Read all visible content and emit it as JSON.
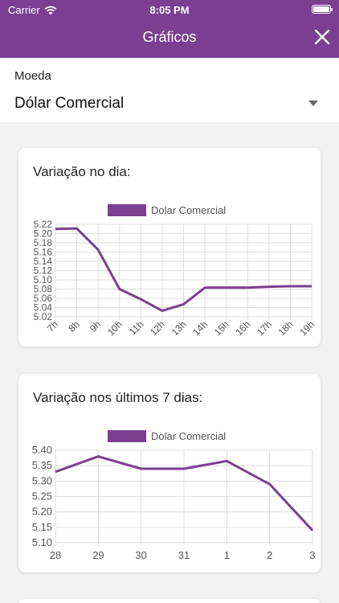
{
  "status_bar": {
    "carrier": "Carrier",
    "time": "8:05 PM"
  },
  "header": {
    "title": "Gráficos",
    "close_icon": "close-icon"
  },
  "currency_selector": {
    "label": "Moeda",
    "value": "Dólar Comercial"
  },
  "colors": {
    "accent": "#7b3f91",
    "grid": "#dddddd"
  },
  "charts": {
    "day": {
      "title": "Variação no dia:"
    },
    "week": {
      "title": "Variação nos últimos 7 dias:"
    }
  },
  "chart_data": [
    {
      "type": "line",
      "title": "Variação no dia:",
      "categories": [
        "7h",
        "8h",
        "9h",
        "10h",
        "11h",
        "12h",
        "13h",
        "14h",
        "15h",
        "16h",
        "17h",
        "18h",
        "19h"
      ],
      "series": [
        {
          "name": "Dolar Comercial",
          "values": [
            5.21,
            5.211,
            5.165,
            5.08,
            5.058,
            5.033,
            5.047,
            5.083,
            5.083,
            5.083,
            5.085,
            5.086,
            5.086
          ]
        }
      ],
      "y_ticks": [
        "5.22",
        "5.20",
        "5.18",
        "5.16",
        "5.14",
        "5.12",
        "5.10",
        "5.08",
        "5.06",
        "5.04",
        "5.02"
      ],
      "ylim": [
        5.02,
        5.22
      ],
      "grid": true,
      "legend": "top"
    },
    {
      "type": "line",
      "title": "Variação nos últimos 7 dias:",
      "categories": [
        "28",
        "29",
        "30",
        "31",
        "1",
        "2",
        "3"
      ],
      "series": [
        {
          "name": "Dolar Comercial",
          "values": [
            5.33,
            5.38,
            5.34,
            5.34,
            5.365,
            5.29,
            5.14
          ]
        }
      ],
      "y_ticks": [
        "5.40",
        "5.35",
        "5.30",
        "5.25",
        "5.20",
        "5.15",
        "5.10"
      ],
      "ylim": [
        5.1,
        5.4
      ],
      "grid": true,
      "legend": "top"
    }
  ]
}
